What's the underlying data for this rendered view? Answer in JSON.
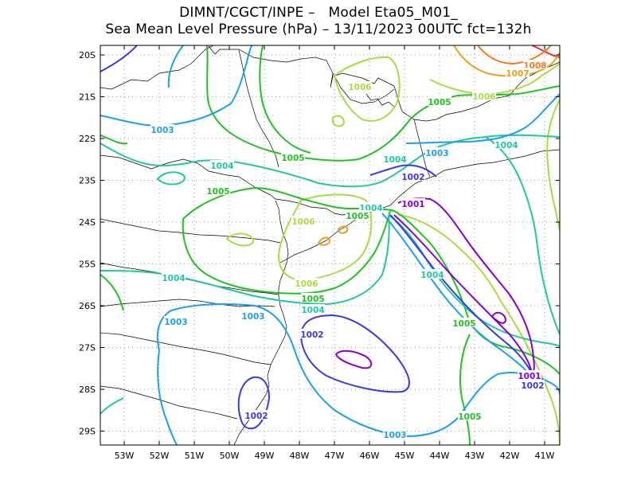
{
  "title_line1": "DIMNT/CGCT/INPE –   Model Eta05_M01_",
  "title_line2": "Sea Mean Level Pressure (hPa) – 13/11/2023 00UTC fct=132h",
  "lat_ticks": [
    "20S",
    "21S",
    "22S",
    "23S",
    "24S",
    "25S",
    "26S",
    "27S",
    "28S",
    "29S"
  ],
  "lon_ticks": [
    "53W",
    "52W",
    "51W",
    "50W",
    "49W",
    "48W",
    "47W",
    "46W",
    "45W",
    "44W",
    "43W",
    "42W",
    "41W"
  ],
  "contour_colors": {
    "1001": "#8800cc",
    "1002": "#3a3ae0",
    "1003": "#1ea0e6",
    "1004": "#20c8a0",
    "1005": "#22c022",
    "1006": "#a8dc40",
    "1007": "#e8a020",
    "1008": "#f07828",
    "1009": "#e83030"
  },
  "contour_labels": [
    {
      "text": "1008",
      "level": "1008"
    },
    {
      "text": "1007",
      "level": "1007"
    },
    {
      "text": "1006",
      "level": "1006"
    },
    {
      "text": "1006",
      "level": "1006"
    },
    {
      "text": "1005",
      "level": "1005"
    },
    {
      "text": "1003",
      "level": "1003"
    },
    {
      "text": "1005",
      "level": "1005"
    },
    {
      "text": "1004",
      "level": "1004"
    },
    {
      "text": "1004",
      "level": "1004"
    },
    {
      "text": "1003",
      "level": "1003"
    },
    {
      "text": "1004",
      "level": "1004"
    },
    {
      "text": "1002",
      "level": "1002"
    },
    {
      "text": "1005",
      "level": "1005"
    },
    {
      "text": "1004",
      "level": "1004"
    },
    {
      "text": "1001",
      "level": "1001"
    },
    {
      "text": "1006",
      "level": "1006"
    },
    {
      "text": "1005",
      "level": "1005"
    },
    {
      "text": "1004",
      "level": "1004"
    },
    {
      "text": "1006",
      "level": "1006"
    },
    {
      "text": "1004",
      "level": "1004"
    },
    {
      "text": "1005",
      "level": "1005"
    },
    {
      "text": "1004",
      "level": "1004"
    },
    {
      "text": "1003",
      "level": "1003"
    },
    {
      "text": "1003",
      "level": "1003"
    },
    {
      "text": "1005",
      "level": "1005"
    },
    {
      "text": "1002",
      "level": "1002"
    },
    {
      "text": "1001",
      "level": "1001"
    },
    {
      "text": "1002",
      "level": "1002"
    },
    {
      "text": "1002",
      "level": "1002"
    },
    {
      "text": "1005",
      "level": "1005"
    },
    {
      "text": "1003",
      "level": "1003"
    }
  ]
}
